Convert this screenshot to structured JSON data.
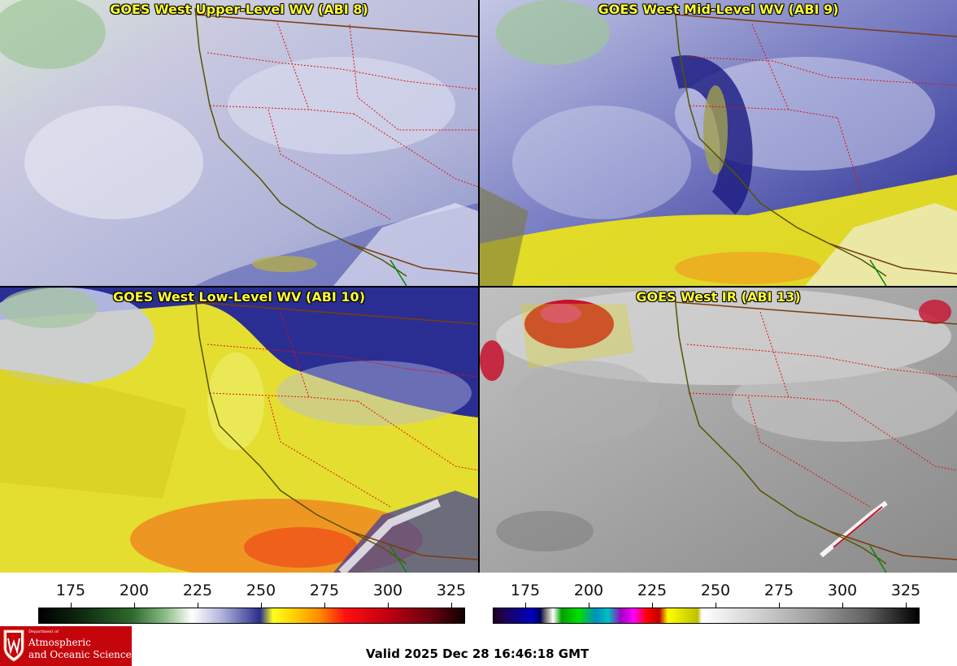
{
  "panels": [
    {
      "id": "ul",
      "title": "GOES West Upper-Level WV (ABI 8)",
      "palette": "wv-upper"
    },
    {
      "id": "ml",
      "title": "GOES West Mid-Level WV (ABI 9)",
      "palette": "wv-mid"
    },
    {
      "id": "ll",
      "title": "GOES West Low-Level WV (ABI 10)",
      "palette": "wv-low"
    },
    {
      "id": "ir",
      "title": "GOES West IR (ABI 13)",
      "palette": "ir"
    }
  ],
  "colorbars": [
    {
      "name": "wv-colorbar",
      "ticks": [
        "175",
        "200",
        "225",
        "250",
        "275",
        "300",
        "325"
      ]
    },
    {
      "name": "ir-colorbar",
      "ticks": [
        "175",
        "200",
        "225",
        "250",
        "275",
        "300",
        "325"
      ]
    }
  ],
  "colors": {
    "border_state": "#e01010",
    "border_intl": "#7a3b10",
    "coast": "#555500",
    "title_text": "#ffff33",
    "logo_bg": "#c5050c"
  },
  "logo": {
    "dept": "Department of",
    "line1": "Atmospheric",
    "line2": "and Oceanic Sciences"
  },
  "valid_text": "Valid 2025 Dec 28 16:46:18 GMT"
}
